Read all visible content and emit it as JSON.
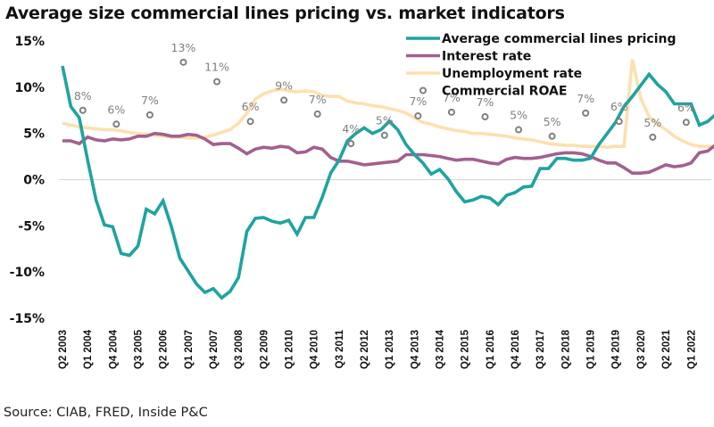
{
  "chart_data": {
    "type": "line",
    "title": "Average size commercial lines pricing vs. market indicators",
    "source": "Source: CIAB, FRED, Inside P&C",
    "xlabel": "",
    "ylabel": "",
    "ylim": [
      -15,
      15
    ],
    "yticks": [
      "15%",
      "10%",
      "5%",
      "0%",
      "-5%",
      "-10%",
      "-15%"
    ],
    "ytick_values": [
      15,
      10,
      5,
      0,
      -5,
      -10,
      -15
    ],
    "grid": "zero-line only",
    "legend_position": "top-right",
    "x_start": "Q2 2003",
    "x_end": "Q3 2022",
    "xtick_labels": [
      "Q2 2003",
      "Q1 2004",
      "Q4 2004",
      "Q3 2005",
      "Q2 2006",
      "Q1 2007",
      "Q4 2007",
      "Q3 2008",
      "Q2 2009",
      "Q1 2010",
      "Q4 2010",
      "Q3 2011",
      "Q2 2012",
      "Q1 2013",
      "Q4 2013",
      "Q3 2014",
      "Q2 2015",
      "Q1 2016",
      "Q4 2016",
      "Q3 2017",
      "Q2 2018",
      "Q1 2019",
      "Q4 2019",
      "Q3 2020",
      "Q2 2021",
      "Q1 2022"
    ],
    "xtick_every_quarters": 3,
    "series": [
      {
        "name": "Average commercial lines pricing",
        "color": "#1fa3a0",
        "style": "line",
        "values": [
          12.3,
          7.9,
          6.7,
          2.1,
          -2.2,
          -4.9,
          -5.1,
          -8.0,
          -8.2,
          -7.2,
          -3.2,
          -3.7,
          -2.3,
          -5.1,
          -8.5,
          -9.9,
          -11.3,
          -12.2,
          -11.8,
          -12.8,
          -12.1,
          -10.6,
          -5.6,
          -4.2,
          -4.1,
          -4.5,
          -4.7,
          -4.4,
          -5.9,
          -4.1,
          -4.1,
          -1.9,
          0.7,
          2.1,
          4.2,
          5.0,
          5.6,
          5.0,
          5.4,
          6.3,
          5.4,
          3.8,
          2.7,
          1.8,
          0.6,
          1.1,
          0.1,
          -1.3,
          -2.4,
          -2.2,
          -1.8,
          -2.0,
          -2.7,
          -1.7,
          -1.4,
          -0.8,
          -0.7,
          1.2,
          1.2,
          2.3,
          2.3,
          2.1,
          2.1,
          2.3,
          3.8,
          5.0,
          6.2,
          7.9,
          9.0,
          10.2,
          11.4,
          10.3,
          9.5,
          8.2,
          8.2,
          8.2,
          5.9,
          6.3,
          7.1
        ]
      },
      {
        "name": "Interest rate",
        "color": "#a2608f",
        "style": "line",
        "values": [
          4.2,
          4.2,
          3.9,
          4.6,
          4.3,
          4.2,
          4.4,
          4.3,
          4.4,
          4.7,
          4.7,
          5.0,
          4.9,
          4.7,
          4.7,
          4.9,
          4.8,
          4.4,
          3.8,
          3.9,
          3.9,
          3.4,
          2.8,
          3.3,
          3.5,
          3.4,
          3.6,
          3.5,
          2.9,
          3.0,
          3.5,
          3.3,
          2.4,
          2.0,
          2.0,
          1.8,
          1.6,
          1.7,
          1.8,
          1.9,
          2.0,
          2.7,
          2.7,
          2.7,
          2.6,
          2.5,
          2.3,
          2.1,
          2.2,
          2.2,
          2.0,
          1.8,
          1.7,
          2.2,
          2.4,
          2.3,
          2.3,
          2.4,
          2.6,
          2.8,
          2.9,
          2.9,
          2.8,
          2.5,
          2.1,
          1.8,
          1.8,
          1.3,
          0.7,
          0.7,
          0.8,
          1.2,
          1.6,
          1.4,
          1.5,
          1.8,
          2.9,
          3.1,
          3.8
        ]
      },
      {
        "name": "Unemployment rate",
        "color": "#fde0b0",
        "style": "line",
        "values": [
          6.1,
          5.9,
          5.7,
          5.6,
          5.5,
          5.4,
          5.4,
          5.3,
          5.1,
          5.0,
          4.9,
          4.8,
          4.7,
          4.6,
          4.6,
          4.5,
          4.5,
          4.6,
          4.8,
          5.1,
          5.4,
          6.1,
          7.2,
          8.7,
          9.3,
          9.6,
          9.8,
          9.6,
          9.5,
          9.6,
          9.5,
          9.1,
          9.0,
          9.0,
          8.5,
          8.3,
          8.2,
          8.0,
          7.9,
          7.7,
          7.5,
          7.2,
          6.7,
          6.2,
          6.0,
          5.7,
          5.5,
          5.3,
          5.2,
          5.0,
          5.0,
          4.9,
          4.8,
          4.7,
          4.5,
          4.4,
          4.3,
          4.1,
          3.9,
          3.8,
          3.7,
          3.7,
          3.6,
          3.6,
          3.6,
          3.5,
          3.6,
          3.6,
          13.0,
          8.8,
          6.8,
          6.0,
          5.4,
          4.7,
          4.2,
          3.8,
          3.6,
          3.6,
          3.6
        ]
      },
      {
        "name": "Commercial ROAE",
        "color": "#7f7f7f",
        "style": "markers",
        "points": [
          {
            "x": "Q4 2003",
            "value": 7.5,
            "label": "8%"
          },
          {
            "x": "Q4 2004",
            "value": 6.0,
            "label": "6%"
          },
          {
            "x": "Q4 2005",
            "value": 7.0,
            "label": "7%"
          },
          {
            "x": "Q4 2006",
            "value": 12.7,
            "label": "13%"
          },
          {
            "x": "Q4 2007",
            "value": 10.6,
            "label": "11%"
          },
          {
            "x": "Q4 2008",
            "value": 6.3,
            "label": "6%"
          },
          {
            "x": "Q4 2009",
            "value": 8.6,
            "label": "9%"
          },
          {
            "x": "Q4 2010",
            "value": 7.1,
            "label": "7%"
          },
          {
            "x": "Q4 2011",
            "value": 3.9,
            "label": "4%"
          },
          {
            "x": "Q4 2012",
            "value": 4.8,
            "label": "5%"
          },
          {
            "x": "Q4 2013",
            "value": 6.9,
            "label": "7%"
          },
          {
            "x": "Q4 2014",
            "value": 7.3,
            "label": "7%"
          },
          {
            "x": "Q4 2015",
            "value": 6.8,
            "label": "7%"
          },
          {
            "x": "Q4 2016",
            "value": 5.4,
            "label": "5%"
          },
          {
            "x": "Q4 2017",
            "value": 4.7,
            "label": "5%"
          },
          {
            "x": "Q4 2018",
            "value": 7.2,
            "label": "7%"
          },
          {
            "x": "Q4 2019",
            "value": 6.3,
            "label": "6%"
          },
          {
            "x": "Q4 2020",
            "value": 4.6,
            "label": "5%"
          },
          {
            "x": "Q4 2021",
            "value": 6.2,
            "label": "6%"
          }
        ]
      }
    ]
  }
}
